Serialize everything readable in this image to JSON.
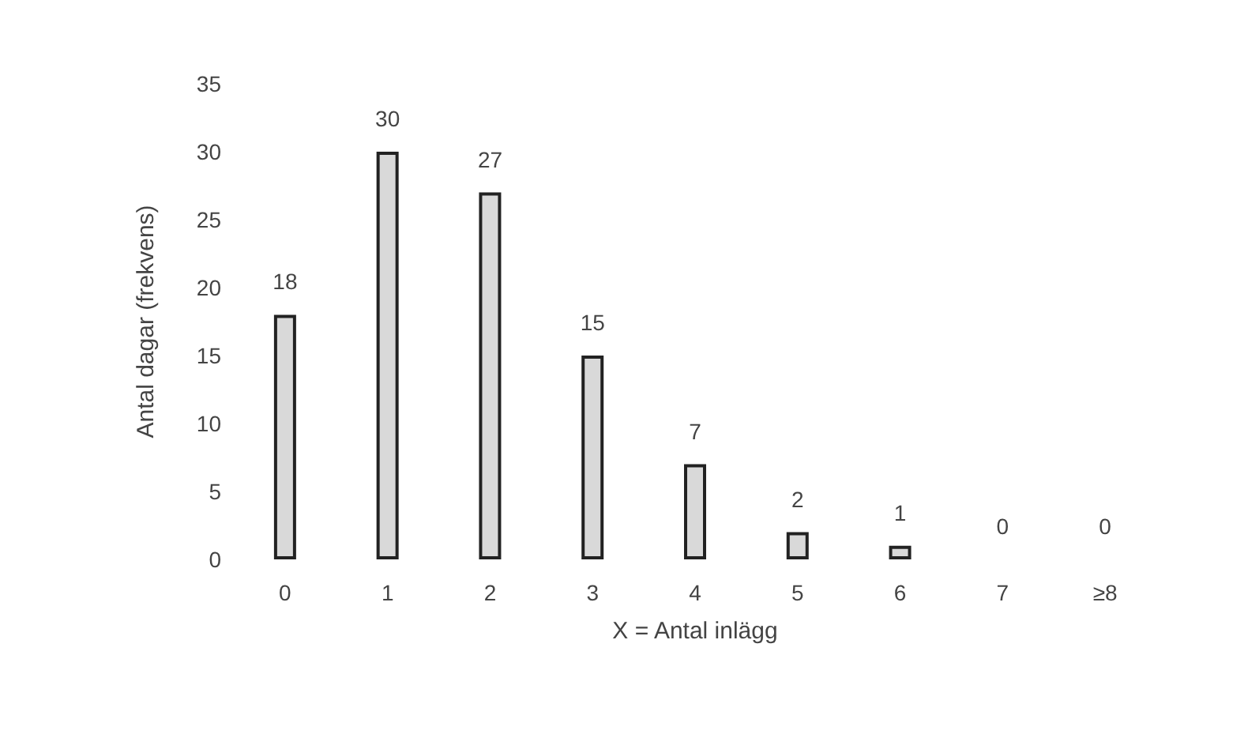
{
  "chart_data": {
    "type": "bar",
    "xlabel": "X = Antal inlägg",
    "ylabel": "Antal dagar (frekvens)",
    "categories": [
      "0",
      "1",
      "2",
      "3",
      "4",
      "5",
      "6",
      "7",
      "≥8"
    ],
    "values": [
      18,
      30,
      27,
      15,
      7,
      2,
      1,
      0,
      0
    ],
    "color": "#d9d9d9",
    "ylim": [
      0,
      35
    ],
    "yticks": [
      0,
      5,
      10,
      15,
      20,
      25,
      30,
      35
    ],
    "grid": false,
    "data_labels": true
  }
}
